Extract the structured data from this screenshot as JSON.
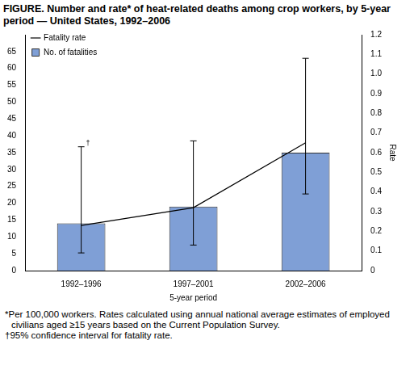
{
  "chart_data": {
    "type": "bar",
    "title": "FIGURE. Number and rate* of heat-related deaths among crop workers, by 5-year period — United States, 1992–2006",
    "x_label": "5-year period",
    "categories": [
      "1992–1996",
      "1997–2001",
      "2002–2006"
    ],
    "series": [
      {
        "name": "No. of fatalities",
        "type": "bar",
        "color": "#7f9fd6",
        "values": [
          14,
          19,
          35
        ]
      },
      {
        "name": "Fatality rate",
        "type": "line",
        "color": "#000000",
        "axis": "y2",
        "values": [
          0.23,
          0.32,
          0.65
        ],
        "ci_lower": [
          0.09,
          0.13,
          0.39
        ],
        "ci_upper": [
          0.63,
          0.66,
          1.08
        ]
      }
    ],
    "ylim": [
      0,
      70
    ],
    "yticks": [
      0,
      5,
      10,
      15,
      20,
      25,
      30,
      35,
      40,
      45,
      50,
      55,
      60,
      65
    ],
    "y2lim": [
      0,
      1.2
    ],
    "y2ticks": [
      0,
      0.1,
      0.2,
      0.3,
      0.4,
      0.5,
      0.6,
      0.7,
      0.8,
      0.9,
      {
        "value": 1,
        "label": "1.0"
      },
      1.1,
      1.2
    ],
    "y2_label": "Rate",
    "legend": "upper left",
    "grid": false,
    "annotations": [
      {
        "text": "†",
        "category": "1992–1996"
      }
    ],
    "footnotes": [
      "*Per 100,000 workers. Rates calculated using annual national average estimates of employed civilians aged ≥15 years based on the Current Population Survey.",
      "†95% confidence interval for fatality rate."
    ]
  }
}
